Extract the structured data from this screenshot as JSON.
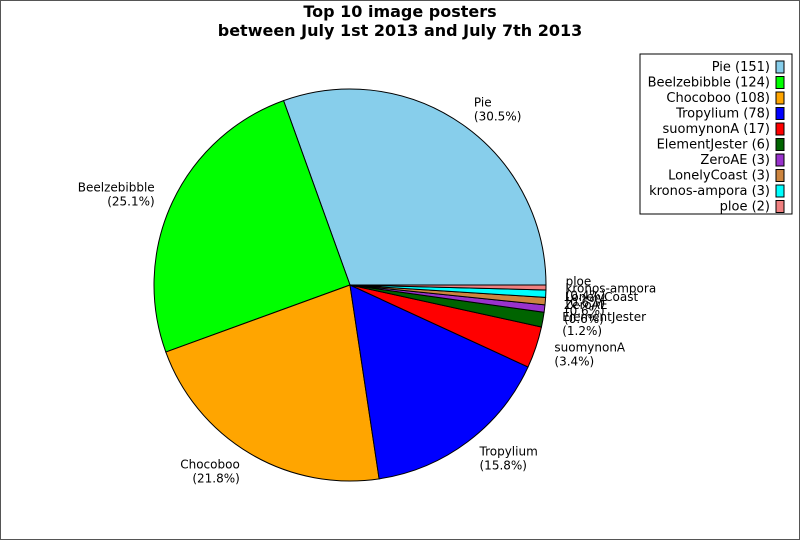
{
  "chart_data": {
    "type": "pie",
    "title": "Top 10 image posters",
    "subtitle": "between July 1st 2013 and July 7th 2013",
    "slices": [
      {
        "name": "Pie",
        "value": 151,
        "pct_label": "(30.5%)",
        "legend": "Pie (151)",
        "color": "#87ceeb"
      },
      {
        "name": "Beelzebibble",
        "value": 124,
        "pct_label": "(25.1%)",
        "legend": "Beelzebibble (124)",
        "color": "#00ff00"
      },
      {
        "name": "Chocoboo",
        "value": 108,
        "pct_label": "(21.8%)",
        "legend": "Chocoboo (108)",
        "color": "#ffa500"
      },
      {
        "name": "Tropylium",
        "value": 78,
        "pct_label": "(15.8%)",
        "legend": "Tropylium (78)",
        "color": "#0000ff"
      },
      {
        "name": "suomynonA",
        "value": 17,
        "pct_label": "(3.4%)",
        "legend": "suomynonA (17)",
        "color": "#ff0000"
      },
      {
        "name": "ElementJester",
        "value": 6,
        "pct_label": "(1.2%)",
        "legend": "ElementJester (6)",
        "color": "#006400"
      },
      {
        "name": "ZeroAE",
        "value": 3,
        "pct_label": "(0.6%)",
        "legend": "ZeroAE (3)",
        "color": "#9932cc"
      },
      {
        "name": "LonelyCoast",
        "value": 3,
        "pct_label": "(0.6%)",
        "legend": "LonelyCoast (3)",
        "color": "#cd853f"
      },
      {
        "name": "kronos-ampora",
        "value": 3,
        "pct_label": "(0.6%)",
        "legend": "kronos-ampora (3)",
        "color": "#00ffff"
      },
      {
        "name": "ploe",
        "value": 2,
        "pct_label": "(0.4%)",
        "legend": "ploe (2)",
        "color": "#f08080"
      }
    ],
    "start": "3 o'clock",
    "direction": "counter-clockwise",
    "legend_position": "top-right"
  }
}
